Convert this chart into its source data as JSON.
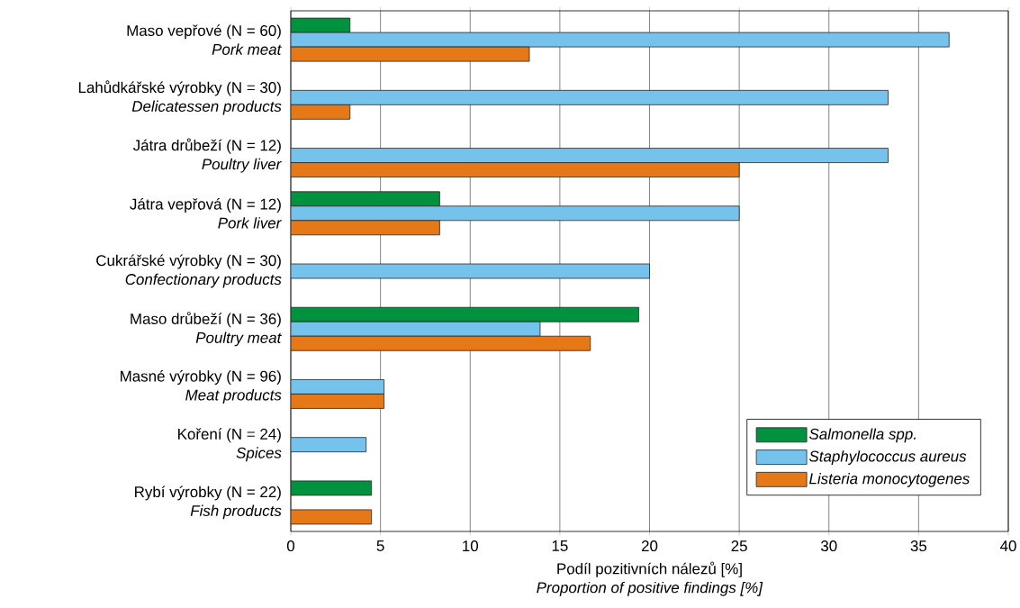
{
  "chart_data": {
    "type": "bar",
    "orientation": "horizontal",
    "categories": [
      "Maso vepřové (N = 60)\n*Pork meat*",
      "Lahůdkářské výrobky (N = 30)\n*Delicatessen products*",
      "Játra drůbeží (N = 12)\n*Poultry liver*",
      "Játra vepřová (N = 12)\n*Pork liver*",
      "Cukrářské výrobky (N = 30)\n*Confectionary products*",
      "Maso drůbeží (N = 36)\n*Poultry meat*",
      "Masné výrobky (N = 96)\n*Meat products*",
      "Koření (N = 24)\n*Spices*",
      "Rybí výrobky (N = 22)\n*Fish products*"
    ],
    "series": [
      {
        "name": "Salmonella spp.",
        "color": "#00923f",
        "values": [
          3.3,
          null,
          null,
          8.3,
          null,
          19.4,
          null,
          null,
          4.5
        ]
      },
      {
        "name": "Staphylococcus aureus",
        "color": "#75c3ed",
        "values": [
          36.7,
          33.3,
          33.3,
          25,
          20,
          13.9,
          5.2,
          4.2,
          null
        ]
      },
      {
        "name": "Listeria monocytogenes",
        "color": "#e77817",
        "values": [
          13.3,
          3.3,
          25,
          8.3,
          null,
          16.7,
          5.2,
          null,
          4.5
        ]
      }
    ],
    "xlabel": "Podíl pozitivních nálezů [%]\n*Proportion of positive findings [%]*",
    "xlim": [
      0,
      40
    ],
    "xticks": [
      0,
      5,
      10,
      15,
      20,
      25,
      30,
      35,
      40
    ],
    "grid": "x",
    "legend": "bottom right"
  }
}
